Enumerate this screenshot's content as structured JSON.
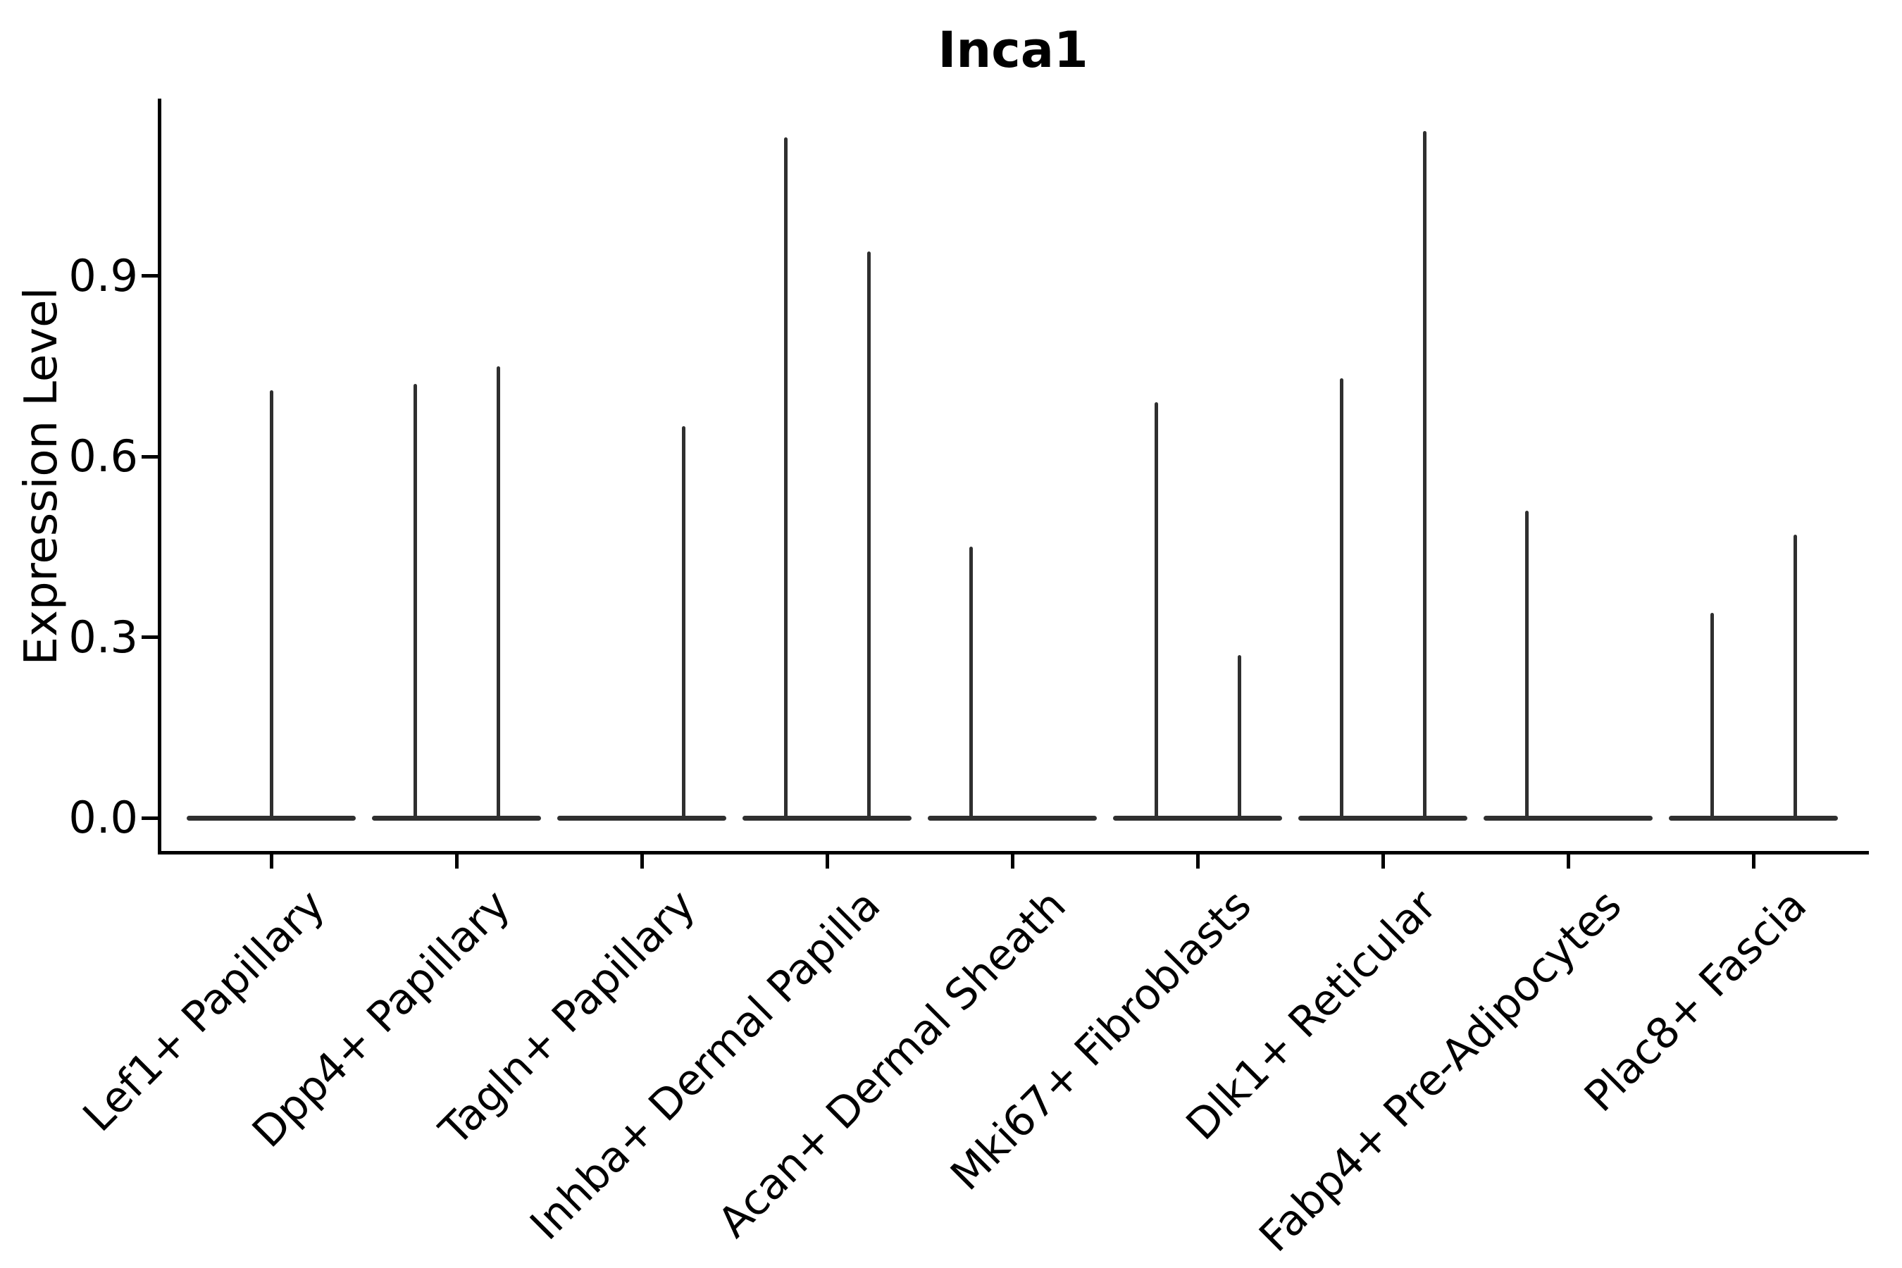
{
  "figure": {
    "title": "Inca1",
    "y_axis_label": "Expression Level"
  },
  "chart_data": {
    "type": "violin",
    "title": "Inca1",
    "xlabel": "",
    "ylabel": "Expression Level",
    "ylim": [
      0,
      1.2
    ],
    "yticks": [
      0,
      0.3,
      0.6,
      0.9
    ],
    "ytick_labels": [
      "0.0",
      "0.3",
      "0.6",
      "0.9"
    ],
    "grid": false,
    "legend_position": "none",
    "categories": [
      "Lef1+ Papillary",
      "Dpp4+ Papillary",
      "Tagln+ Papillary",
      "Inhba+ Dermal Papilla",
      "Acan+ Dermal Sheath",
      "Mki67+ Fibroblasts",
      "Dlk1+ Reticular",
      "Fabp4+ Pre-Adipocytes",
      "Plac8+ Fascia"
    ],
    "colors": {
      "violin": "#2f2f2f",
      "axis": "#000000",
      "text": "#000000",
      "background": "#ffffff"
    },
    "violins": [
      {
        "category": "Lef1+ Papillary",
        "baseline_value": 0,
        "spikes": [
          {
            "group": "center",
            "max_expression": 0.71
          }
        ]
      },
      {
        "category": "Dpp4+ Papillary",
        "baseline_value": 0,
        "spikes": [
          {
            "group": "left",
            "max_expression": 0.72
          },
          {
            "group": "right",
            "max_expression": 0.75
          }
        ]
      },
      {
        "category": "Tagln+ Papillary",
        "baseline_value": 0,
        "spikes": [
          {
            "group": "right",
            "max_expression": 0.65
          }
        ]
      },
      {
        "category": "Inhba+ Dermal Papilla",
        "baseline_value": 0,
        "spikes": [
          {
            "group": "left",
            "max_expression": 1.13
          },
          {
            "group": "right",
            "max_expression": 0.94
          }
        ]
      },
      {
        "category": "Acan+ Dermal Sheath",
        "baseline_value": 0,
        "spikes": [
          {
            "group": "left",
            "max_expression": 0.45
          }
        ]
      },
      {
        "category": "Mki67+ Fibroblasts",
        "baseline_value": 0,
        "spikes": [
          {
            "group": "left",
            "max_expression": 0.69
          },
          {
            "group": "right",
            "max_expression": 0.27
          }
        ]
      },
      {
        "category": "Dlk1+ Reticular",
        "baseline_value": 0,
        "spikes": [
          {
            "group": "left",
            "max_expression": 0.73
          },
          {
            "group": "right",
            "max_expression": 1.14
          }
        ]
      },
      {
        "category": "Fabp4+ Pre-Adipocytes",
        "baseline_value": 0,
        "spikes": [
          {
            "group": "left",
            "max_expression": 0.51
          }
        ]
      },
      {
        "category": "Plac8+ Fascia",
        "baseline_value": 0,
        "spikes": [
          {
            "group": "left",
            "max_expression": 0.34
          },
          {
            "group": "right",
            "max_expression": 0.47
          }
        ]
      }
    ]
  }
}
